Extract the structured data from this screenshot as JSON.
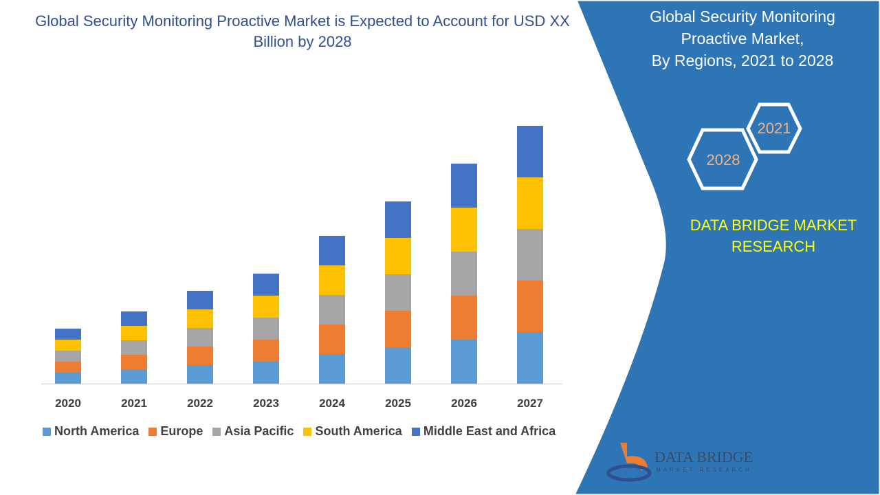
{
  "title": "Global Security Monitoring Proactive Market is Expected to Account for USD XX Billion by 2028",
  "side_panel": {
    "title_lines": [
      "Global Security Monitoring",
      "Proactive Market,",
      "By Regions, 2021 to 2028"
    ],
    "hex_years": [
      "2021",
      "2028"
    ],
    "brand_lines": [
      "DATA BRIDGE MARKET",
      "RESEARCH"
    ],
    "logo_text": "DATA BRIDGE",
    "logo_sub": "MARKET RESEARCH",
    "color": "#2e75b6"
  },
  "chart_data": {
    "type": "bar",
    "stacked": true,
    "title": "",
    "xlabel": "",
    "ylabel": "",
    "categories": [
      "2020",
      "2021",
      "2022",
      "2023",
      "2024",
      "2025",
      "2026",
      "2027"
    ],
    "series": [
      {
        "name": "North America",
        "color": "#5b9bd5",
        "values": [
          16,
          21,
          27,
          32,
          43,
          53,
          64,
          75
        ]
      },
      {
        "name": "Europe",
        "color": "#ed7d31",
        "values": [
          16,
          21,
          27,
          32,
          43,
          53,
          64,
          75
        ]
      },
      {
        "name": "Asia Pacific",
        "color": "#a5a5a5",
        "values": [
          16,
          21,
          27,
          32,
          43,
          53,
          64,
          75
        ]
      },
      {
        "name": "South America",
        "color": "#ffc000",
        "values": [
          16,
          21,
          27,
          32,
          43,
          53,
          64,
          75
        ]
      },
      {
        "name": "Middle East and Africa",
        "color": "#4472c4",
        "values": [
          16,
          21,
          27,
          32,
          43,
          53,
          64,
          75
        ]
      }
    ],
    "ylim": [
      0,
      400
    ],
    "grid": false,
    "legend": "bottom"
  }
}
